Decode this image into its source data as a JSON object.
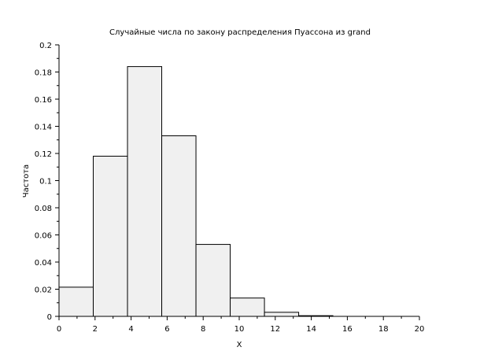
{
  "chart_data": {
    "type": "bar",
    "title": "Случайные числа по закону распределения Пуассона из grand",
    "xlabel": "X",
    "ylabel": "Частота",
    "xlim": [
      0,
      20
    ],
    "ylim": [
      0,
      0.2
    ],
    "grid": false,
    "x_ticks": [
      "0",
      "2",
      "4",
      "6",
      "8",
      "10",
      "12",
      "14",
      "16",
      "18",
      "20"
    ],
    "y_ticks": [
      "0",
      "0.02",
      "0.04",
      "0.06",
      "0.08",
      "0.1",
      "0.12",
      "0.14",
      "0.16",
      "0.18",
      "0.2"
    ],
    "bins": [
      {
        "x0": 0,
        "x1": 1.9,
        "value": 0.0215
      },
      {
        "x0": 1.9,
        "x1": 3.8,
        "value": 0.118
      },
      {
        "x0": 3.8,
        "x1": 5.7,
        "value": 0.184
      },
      {
        "x0": 5.7,
        "x1": 7.6,
        "value": 0.133
      },
      {
        "x0": 7.6,
        "x1": 9.5,
        "value": 0.053
      },
      {
        "x0": 9.5,
        "x1": 11.4,
        "value": 0.0135
      },
      {
        "x0": 11.4,
        "x1": 13.3,
        "value": 0.003
      },
      {
        "x0": 13.3,
        "x1": 15.2,
        "value": 0.0005
      }
    ]
  }
}
